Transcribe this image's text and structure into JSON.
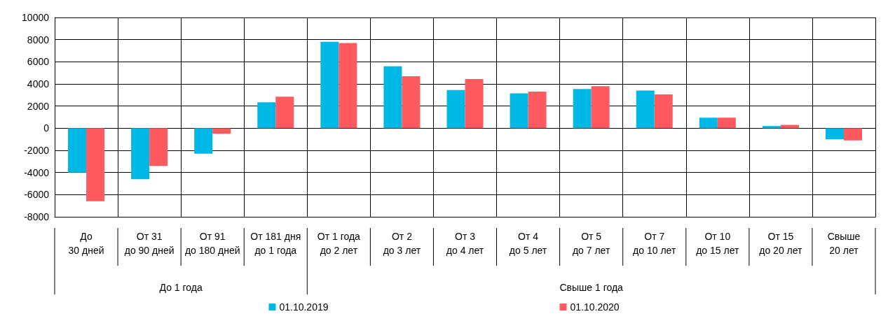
{
  "chart_data": {
    "type": "bar",
    "categories": [
      "До\n30 дней",
      "От 31\nдо 90 дней",
      "От 91\nдо 180 дней",
      "От 181 дня\nдо 1 года",
      "От 1 года\nдо 2 лет",
      "От 2\nдо 3 лет",
      "От 3\nдо 4 лет",
      "От 4\nдо 5 лет",
      "От 5\nдо 7 лет",
      "От 7\nдо 10 лет",
      "От 10\nдо 15 лет",
      "От 15\nдо 20 лет",
      "Свыше\n20 лет"
    ],
    "series": [
      {
        "name": "01.10.2019",
        "color": "#00b8e6",
        "values": [
          -4000,
          -4600,
          -2300,
          2350,
          7800,
          5600,
          3450,
          3150,
          3550,
          3400,
          950,
          200,
          -1000
        ]
      },
      {
        "name": "01.10.2020",
        "color": "#ff5a5f",
        "values": [
          -6600,
          -3400,
          -500,
          2850,
          7700,
          4700,
          4450,
          3300,
          3800,
          3050,
          950,
          300,
          -1100
        ]
      }
    ],
    "annotations": [
      "До 1 года",
      "Свыше 1 года"
    ],
    "ylim": [
      -8000,
      10000
    ],
    "yticks": [
      -8000,
      -6000,
      -4000,
      -2000,
      0,
      2000,
      4000,
      6000,
      8000,
      10000
    ],
    "grid": true,
    "legend": "bottom"
  }
}
